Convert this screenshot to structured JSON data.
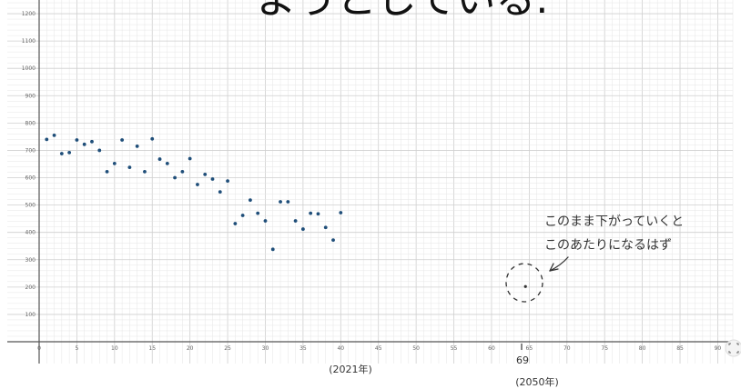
{
  "header_text": "ようとしている.",
  "annotation": {
    "line1": "このまま下がっていくと",
    "line2": "このあたりになるはず"
  },
  "x_marks": [
    {
      "label": "(2021年)"
    },
    {
      "label_top": "69",
      "label_bottom": "(2050年)"
    }
  ],
  "fullscreen_icon": "fullscreen-icon",
  "colors": {
    "points": "#1f4e79",
    "grid_minor": "#e6e6e6",
    "grid_major": "#cfcfcf",
    "axis": "#555555",
    "ink": "#333333"
  },
  "chart_data": {
    "type": "scatter",
    "xlim": [
      0,
      92
    ],
    "ylim": [
      0,
      1250
    ],
    "x_ticks": [
      0,
      5,
      10,
      15,
      20,
      25,
      30,
      35,
      40,
      45,
      50,
      55,
      60,
      65,
      70,
      75,
      80,
      85,
      90
    ],
    "y_ticks": [
      100,
      200,
      300,
      400,
      500,
      600,
      700,
      800,
      900,
      1000,
      1100,
      1200
    ],
    "grid": true,
    "series": [
      {
        "points": [
          [
            1,
            740
          ],
          [
            2,
            755
          ],
          [
            3,
            688
          ],
          [
            4,
            692
          ],
          [
            5,
            738
          ],
          [
            6,
            722
          ],
          [
            7,
            732
          ],
          [
            8,
            700
          ],
          [
            9,
            622
          ],
          [
            10,
            652
          ],
          [
            11,
            738
          ],
          [
            12,
            638
          ],
          [
            13,
            715
          ],
          [
            14,
            622
          ],
          [
            15,
            742
          ],
          [
            16,
            668
          ],
          [
            17,
            652
          ],
          [
            18,
            600
          ],
          [
            19,
            622
          ],
          [
            20,
            670
          ],
          [
            21,
            575
          ],
          [
            22,
            612
          ],
          [
            23,
            595
          ],
          [
            24,
            548
          ],
          [
            25,
            588
          ],
          [
            26,
            432
          ],
          [
            27,
            462
          ],
          [
            28,
            518
          ],
          [
            29,
            470
          ],
          [
            30,
            442
          ],
          [
            31,
            338
          ],
          [
            32,
            512
          ],
          [
            33,
            512
          ],
          [
            34,
            442
          ],
          [
            35,
            412
          ],
          [
            36,
            470
          ],
          [
            37,
            468
          ],
          [
            38,
            418
          ],
          [
            39,
            372
          ],
          [
            40,
            472
          ]
        ]
      },
      {
        "points": [
          [
            64.5,
            202
          ]
        ]
      }
    ]
  }
}
